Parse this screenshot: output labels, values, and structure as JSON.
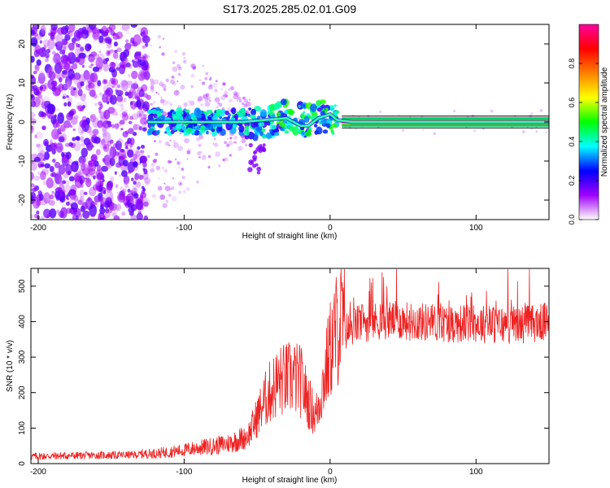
{
  "title": "S173.2025.285.02.01.G09",
  "chart_data": [
    {
      "type": "heatmap",
      "xlabel": "Height of straight line (km)",
      "ylabel": "Frequency (Hz)",
      "xlim": [
        -205,
        150
      ],
      "ylim": [
        -25,
        25
      ],
      "xticks": [
        -200,
        -100,
        0,
        100
      ],
      "xtick_labels": [
        "-200",
        "-100",
        "0",
        "100"
      ],
      "yticks": [
        -20,
        -10,
        0,
        10,
        20
      ],
      "ytick_labels": [
        "-20",
        "-10",
        "0",
        "10",
        "20"
      ],
      "colorbar": {
        "label": "Normalized spectral amplitude",
        "range": [
          0,
          1
        ],
        "ticks": [
          0.0,
          0.2,
          0.4,
          0.6,
          0.8
        ],
        "tick_labels": [
          "0.0",
          "0.2",
          "0.4",
          "0.6",
          "0.8"
        ],
        "colors": [
          "#ffffff",
          "#a000ff",
          "#0000ff",
          "#00ffff",
          "#00ff00",
          "#ffff00",
          "#ff8000",
          "#ff0000",
          "#ff00a0"
        ]
      },
      "signal_track": {
        "description_points": [
          [
            -125,
            0
          ],
          [
            -100,
            0
          ],
          [
            -60,
            0
          ],
          [
            -30,
            1
          ],
          [
            -20,
            -1
          ],
          [
            -15,
            -1
          ],
          [
            -8,
            1
          ],
          [
            0,
            2
          ],
          [
            5,
            0.5
          ],
          [
            15,
            0
          ],
          [
            150,
            0
          ]
        ]
      }
    },
    {
      "type": "line",
      "xlabel": "Height of straight line (km)",
      "ylabel": "SNR (10 * v/v)",
      "xlim": [
        -205,
        150
      ],
      "ylim": [
        0,
        550
      ],
      "xticks": [
        -200,
        -100,
        0,
        100
      ],
      "xtick_labels": [
        "-200",
        "-100",
        "0",
        "100"
      ],
      "yticks": [
        0,
        100,
        200,
        300,
        400,
        500
      ],
      "ytick_labels": [
        "0",
        "100",
        "200",
        "300",
        "400",
        "500"
      ],
      "series": [
        {
          "name": "SNR",
          "color": "#ee2222",
          "x": [
            -205,
            -180,
            -160,
            -140,
            -120,
            -110,
            -100,
            -90,
            -80,
            -70,
            -60,
            -55,
            -50,
            -45,
            -40,
            -35,
            -30,
            -25,
            -20,
            -15,
            -10,
            -5,
            0,
            5,
            10,
            15,
            20,
            30,
            40,
            60,
            80,
            100,
            120,
            140,
            150
          ],
          "y": [
            18,
            20,
            21,
            22,
            24,
            28,
            32,
            38,
            42,
            48,
            60,
            80,
            120,
            160,
            190,
            210,
            215,
            220,
            210,
            160,
            120,
            200,
            290,
            350,
            370,
            385,
            395,
            400,
            405,
            400,
            395,
            395,
            390,
            395,
            400
          ]
        }
      ]
    }
  ]
}
